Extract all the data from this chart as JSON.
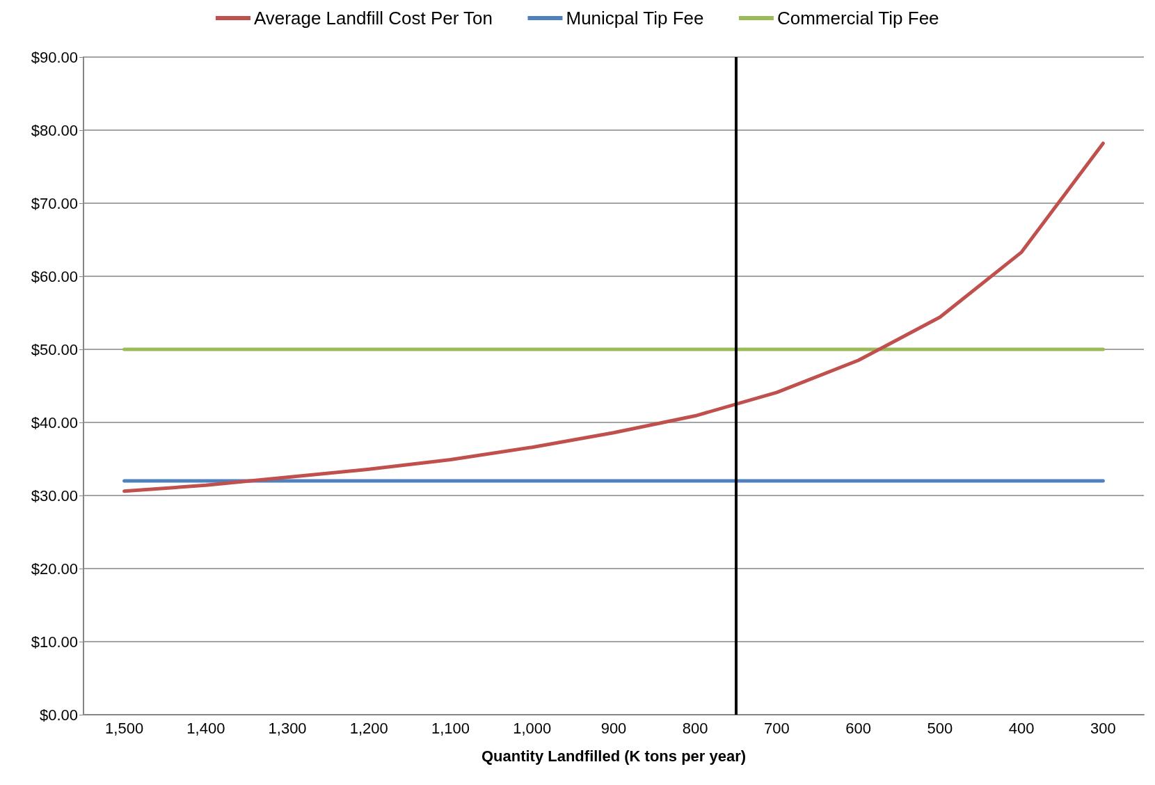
{
  "chart_data": {
    "type": "line",
    "xlabel": "Quantity Landfilled (K tons per year)",
    "x": [
      1500,
      1400,
      1300,
      1200,
      1100,
      1000,
      900,
      800,
      700,
      600,
      500,
      400,
      300
    ],
    "xlim": [
      1550,
      250
    ],
    "xticks": [
      {
        "value": 1500,
        "label": "1,500"
      },
      {
        "value": 1400,
        "label": "1,400"
      },
      {
        "value": 1300,
        "label": "1,300"
      },
      {
        "value": 1200,
        "label": "1,200"
      },
      {
        "value": 1100,
        "label": "1,100"
      },
      {
        "value": 1000,
        "label": "1,000"
      },
      900,
      800,
      700,
      600,
      500,
      400,
      300
    ],
    "ylim": [
      0,
      90
    ],
    "yticks": [
      {
        "value": 0,
        "label": "$0.00"
      },
      {
        "value": 10,
        "label": "$10.00"
      },
      {
        "value": 20,
        "label": "$20.00"
      },
      {
        "value": 30,
        "label": "$30.00"
      },
      {
        "value": 40,
        "label": "$40.00"
      },
      {
        "value": 50,
        "label": "$50.00"
      },
      {
        "value": 60,
        "label": "$60.00"
      },
      {
        "value": 70,
        "label": "$70.00"
      },
      {
        "value": 80,
        "label": "$80.00"
      },
      {
        "value": 90,
        "label": "$90.00"
      }
    ],
    "series": [
      {
        "name": "Average Landfill Cost Per Ton",
        "color": "#c0504d",
        "values": [
          30.6,
          31.4,
          32.5,
          33.6,
          34.9,
          36.6,
          38.6,
          40.9,
          44.1,
          48.5,
          54.4,
          63.3,
          78.2
        ]
      },
      {
        "name": "Municpal Tip Fee",
        "color": "#4f81bd",
        "values": [
          32,
          32,
          32,
          32,
          32,
          32,
          32,
          32,
          32,
          32,
          32,
          32,
          32
        ]
      },
      {
        "name": "Commercial Tip Fee",
        "color": "#9bbb59",
        "values": [
          50,
          50,
          50,
          50,
          50,
          50,
          50,
          50,
          50,
          50,
          50,
          50,
          50
        ]
      }
    ],
    "ref_lines": [
      {
        "axis": "x",
        "value": 750,
        "color": "#000000"
      }
    ],
    "grid": "y",
    "legend": "top",
    "marker": "none",
    "line_style": "solid"
  }
}
